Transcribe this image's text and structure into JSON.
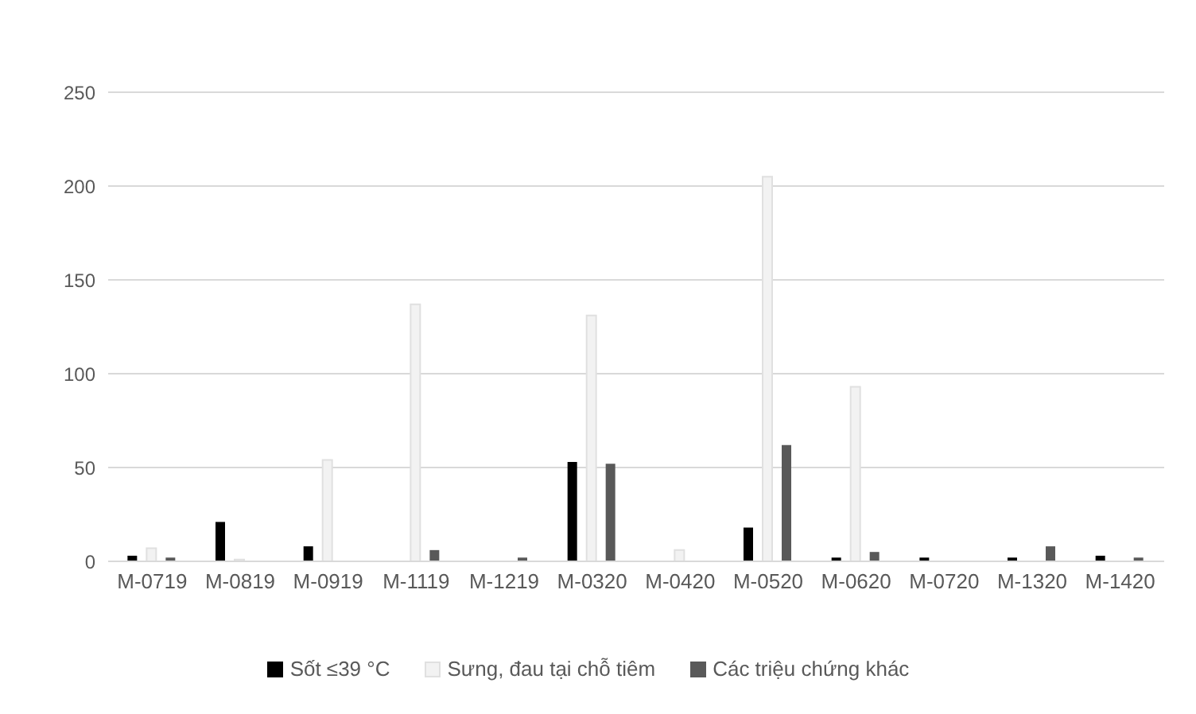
{
  "chart_data": {
    "type": "bar",
    "categories": [
      "M-0719",
      "M-0819",
      "M-0919",
      "M-1119",
      "M-1219",
      "M-0320",
      "M-0420",
      "M-0520",
      "M-0620",
      "M-0720",
      "M-1320",
      "M-1420"
    ],
    "series": [
      {
        "name": "Sốt ≤39 °C",
        "color": "#000000",
        "values": [
          3,
          21,
          8,
          0,
          0,
          53,
          0,
          18,
          2,
          2,
          2,
          3
        ]
      },
      {
        "name": "Sưng, đau tại chỗ tiêm",
        "color": "#f2f2f2",
        "values": [
          7,
          1,
          54,
          137,
          0,
          131,
          6,
          205,
          93,
          0,
          0,
          0
        ]
      },
      {
        "name": "Các triệu chứng khác",
        "color": "#595959",
        "values": [
          2,
          0,
          0,
          6,
          2,
          52,
          0,
          62,
          5,
          0,
          8,
          2
        ]
      }
    ],
    "ylim": [
      0,
      250
    ],
    "yticks": [
      0,
      50,
      100,
      150,
      200,
      250
    ],
    "grid": "y",
    "legend": "bottom"
  }
}
